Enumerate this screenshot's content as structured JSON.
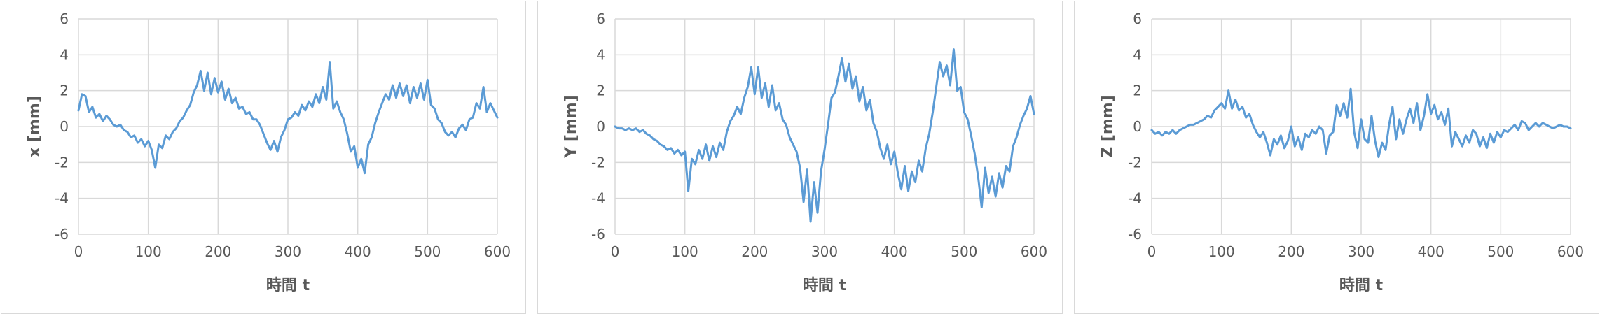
{
  "chart_data": [
    {
      "type": "line",
      "xlabel": "時間 t",
      "ylabel": "x [mm]",
      "xlim": [
        0,
        600
      ],
      "ylim": [
        -6,
        6
      ],
      "xticks": [
        0,
        100,
        200,
        300,
        400,
        500,
        600
      ],
      "yticks": [
        -6,
        -4,
        -2,
        0,
        2,
        4,
        6
      ],
      "grid": true,
      "legend": "none",
      "color": "#5b9bd5",
      "series": [
        {
          "x": [
            0,
            5,
            10,
            15,
            20,
            25,
            30,
            35,
            40,
            45,
            50,
            55,
            60,
            65,
            70,
            75,
            80,
            85,
            90,
            95,
            100,
            105,
            110,
            115,
            120,
            125,
            130,
            135,
            140,
            145,
            150,
            155,
            160,
            165,
            170,
            175,
            180,
            185,
            190,
            195,
            200,
            205,
            210,
            215,
            220,
            225,
            230,
            235,
            240,
            245,
            250,
            255,
            260,
            265,
            270,
            275,
            280,
            285,
            290,
            295,
            300,
            305,
            310,
            315,
            320,
            325,
            330,
            335,
            340,
            345,
            350,
            355,
            360,
            365,
            370,
            375,
            380,
            385,
            390,
            395,
            400,
            405,
            410,
            415,
            420,
            425,
            430,
            435,
            440,
            445,
            450,
            455,
            460,
            465,
            470,
            475,
            480,
            485,
            490,
            495,
            500,
            505,
            510,
            515,
            520,
            525,
            530,
            535,
            540,
            545,
            550,
            555,
            560,
            565,
            570,
            575,
            580,
            585,
            590,
            595,
            600
          ],
          "y": [
            0.9,
            1.8,
            1.7,
            0.8,
            1.1,
            0.5,
            0.7,
            0.3,
            0.6,
            0.4,
            0.1,
            0.0,
            0.1,
            -0.2,
            -0.3,
            -0.6,
            -0.5,
            -0.9,
            -0.7,
            -1.1,
            -0.8,
            -1.3,
            -2.3,
            -1.0,
            -1.2,
            -0.5,
            -0.7,
            -0.3,
            -0.1,
            0.3,
            0.5,
            0.9,
            1.2,
            1.9,
            2.3,
            3.1,
            2.0,
            3.0,
            1.8,
            2.7,
            1.9,
            2.5,
            1.5,
            2.1,
            1.3,
            1.6,
            1.0,
            1.1,
            0.7,
            0.8,
            0.4,
            0.4,
            0.1,
            -0.4,
            -0.9,
            -1.3,
            -0.8,
            -1.4,
            -0.6,
            -0.2,
            0.4,
            0.5,
            0.8,
            0.6,
            1.2,
            0.9,
            1.4,
            1.1,
            1.8,
            1.3,
            2.2,
            1.5,
            3.6,
            1.0,
            1.4,
            0.8,
            0.4,
            -0.4,
            -1.4,
            -1.1,
            -2.3,
            -1.8,
            -2.6,
            -1.0,
            -0.6,
            0.2,
            0.8,
            1.3,
            1.8,
            1.5,
            2.3,
            1.6,
            2.4,
            1.7,
            2.3,
            1.3,
            2.2,
            1.6,
            2.4,
            1.5,
            2.6,
            1.2,
            1.0,
            0.4,
            0.2,
            -0.3,
            -0.5,
            -0.3,
            -0.6,
            -0.1,
            0.1,
            -0.2,
            0.4,
            0.5,
            1.3,
            1.0,
            2.2,
            0.8,
            1.3,
            0.9,
            0.5
          ]
        }
      ]
    },
    {
      "type": "line",
      "xlabel": "時間 t",
      "ylabel": "Y [mm]",
      "xlim": [
        0,
        600
      ],
      "ylim": [
        -6,
        6
      ],
      "xticks": [
        0,
        100,
        200,
        300,
        400,
        500,
        600
      ],
      "yticks": [
        -6,
        -4,
        -2,
        0,
        2,
        4,
        6
      ],
      "grid": true,
      "legend": "none",
      "color": "#5b9bd5",
      "series": [
        {
          "x": [
            0,
            5,
            10,
            15,
            20,
            25,
            30,
            35,
            40,
            45,
            50,
            55,
            60,
            65,
            70,
            75,
            80,
            85,
            90,
            95,
            100,
            105,
            110,
            115,
            120,
            125,
            130,
            135,
            140,
            145,
            150,
            155,
            160,
            165,
            170,
            175,
            180,
            185,
            190,
            195,
            200,
            205,
            210,
            215,
            220,
            225,
            230,
            235,
            240,
            245,
            250,
            255,
            260,
            265,
            270,
            275,
            280,
            285,
            290,
            295,
            300,
            305,
            310,
            315,
            320,
            325,
            330,
            335,
            340,
            345,
            350,
            355,
            360,
            365,
            370,
            375,
            380,
            385,
            390,
            395,
            400,
            405,
            410,
            415,
            420,
            425,
            430,
            435,
            440,
            445,
            450,
            455,
            460,
            465,
            470,
            475,
            480,
            485,
            490,
            495,
            500,
            505,
            510,
            515,
            520,
            525,
            530,
            535,
            540,
            545,
            550,
            555,
            560,
            565,
            570,
            575,
            580,
            585,
            590,
            595,
            600
          ],
          "y": [
            0.0,
            -0.1,
            -0.1,
            -0.2,
            -0.1,
            -0.2,
            -0.1,
            -0.3,
            -0.2,
            -0.4,
            -0.5,
            -0.7,
            -0.8,
            -1.0,
            -1.1,
            -1.3,
            -1.2,
            -1.5,
            -1.3,
            -1.6,
            -1.4,
            -3.6,
            -1.8,
            -2.1,
            -1.3,
            -1.8,
            -1.0,
            -1.9,
            -1.1,
            -1.7,
            -0.9,
            -1.3,
            -0.3,
            0.3,
            0.6,
            1.1,
            0.7,
            1.6,
            2.2,
            3.3,
            1.8,
            3.3,
            1.6,
            2.4,
            1.1,
            2.3,
            0.9,
            1.3,
            0.4,
            0.1,
            -0.6,
            -1.0,
            -1.4,
            -2.3,
            -4.2,
            -2.4,
            -5.3,
            -3.1,
            -4.8,
            -2.5,
            -1.3,
            0.1,
            1.6,
            1.9,
            2.8,
            3.8,
            2.5,
            3.5,
            2.1,
            2.8,
            1.4,
            2.2,
            0.9,
            1.5,
            0.2,
            -0.3,
            -1.2,
            -1.8,
            -1.0,
            -2.1,
            -1.4,
            -2.6,
            -3.5,
            -2.2,
            -3.6,
            -2.5,
            -3.1,
            -1.9,
            -2.5,
            -1.2,
            -0.4,
            0.8,
            2.2,
            3.6,
            2.8,
            3.4,
            2.3,
            4.3,
            2.0,
            2.2,
            0.8,
            0.4,
            -0.5,
            -1.5,
            -2.8,
            -4.5,
            -2.3,
            -3.7,
            -2.8,
            -3.9,
            -2.6,
            -3.4,
            -2.2,
            -2.5,
            -1.1,
            -0.6,
            0.1,
            0.6,
            1.0,
            1.7,
            0.7
          ]
        }
      ]
    },
    {
      "type": "line",
      "xlabel": "時間 t",
      "ylabel": "Z [mm]",
      "xlim": [
        0,
        600
      ],
      "ylim": [
        -6,
        6
      ],
      "xticks": [
        0,
        100,
        200,
        300,
        400,
        500,
        600
      ],
      "yticks": [
        -6,
        -4,
        -2,
        0,
        2,
        4,
        6
      ],
      "grid": true,
      "legend": "none",
      "color": "#5b9bd5",
      "series": [
        {
          "x": [
            0,
            5,
            10,
            15,
            20,
            25,
            30,
            35,
            40,
            45,
            50,
            55,
            60,
            65,
            70,
            75,
            80,
            85,
            90,
            95,
            100,
            105,
            110,
            115,
            120,
            125,
            130,
            135,
            140,
            145,
            150,
            155,
            160,
            165,
            170,
            175,
            180,
            185,
            190,
            195,
            200,
            205,
            210,
            215,
            220,
            225,
            230,
            235,
            240,
            245,
            250,
            255,
            260,
            265,
            270,
            275,
            280,
            285,
            290,
            295,
            300,
            305,
            310,
            315,
            320,
            325,
            330,
            335,
            340,
            345,
            350,
            355,
            360,
            365,
            370,
            375,
            380,
            385,
            390,
            395,
            400,
            405,
            410,
            415,
            420,
            425,
            430,
            435,
            440,
            445,
            450,
            455,
            460,
            465,
            470,
            475,
            480,
            485,
            490,
            495,
            500,
            505,
            510,
            515,
            520,
            525,
            530,
            535,
            540,
            545,
            550,
            555,
            560,
            565,
            570,
            575,
            580,
            585,
            590,
            595,
            600
          ],
          "y": [
            -0.2,
            -0.4,
            -0.3,
            -0.5,
            -0.3,
            -0.4,
            -0.2,
            -0.4,
            -0.2,
            -0.1,
            0.0,
            0.1,
            0.1,
            0.2,
            0.3,
            0.4,
            0.6,
            0.5,
            0.9,
            1.1,
            1.3,
            1.0,
            2.0,
            1.0,
            1.5,
            0.9,
            1.1,
            0.5,
            0.7,
            0.1,
            -0.3,
            -0.6,
            -0.3,
            -0.9,
            -1.6,
            -0.7,
            -1.0,
            -0.5,
            -1.2,
            -0.8,
            0.0,
            -1.1,
            -0.6,
            -1.3,
            -0.4,
            -0.6,
            -0.2,
            -0.4,
            0.0,
            -0.2,
            -1.5,
            -0.5,
            -0.3,
            1.2,
            0.6,
            1.3,
            0.5,
            2.1,
            -0.3,
            -1.2,
            0.4,
            -0.7,
            -0.9,
            0.6,
            -0.8,
            -1.7,
            -0.9,
            -1.3,
            0.1,
            1.1,
            -0.7,
            0.4,
            -0.4,
            0.4,
            1.0,
            0.2,
            1.3,
            -0.2,
            0.6,
            1.8,
            0.7,
            1.2,
            0.4,
            0.8,
            0.1,
            1.0,
            -1.1,
            -0.3,
            -0.7,
            -1.1,
            -0.5,
            -0.9,
            -0.2,
            -0.4,
            -1.1,
            -0.6,
            -1.2,
            -0.4,
            -0.9,
            -0.3,
            -0.6,
            -0.2,
            -0.3,
            -0.1,
            0.1,
            -0.2,
            0.3,
            0.2,
            -0.2,
            0.0,
            0.2,
            0.0,
            0.2,
            0.1,
            0.0,
            -0.1,
            0.0,
            0.1,
            0.0,
            0.0,
            -0.1
          ]
        }
      ]
    }
  ]
}
